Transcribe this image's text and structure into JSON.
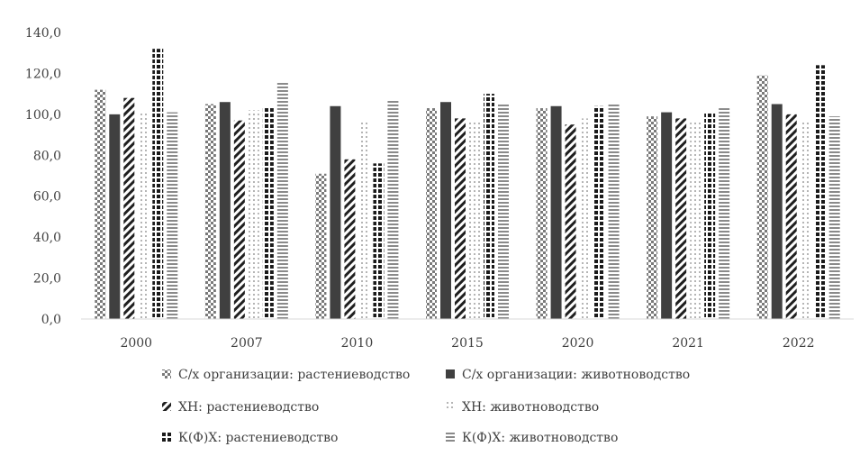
{
  "chart_data": {
    "type": "bar",
    "categories": [
      "2000",
      "2007",
      "2010",
      "2015",
      "2020",
      "2021",
      "2022"
    ],
    "ylim": [
      0,
      140
    ],
    "yticks": [
      "0,0",
      "20,0",
      "40,0",
      "60,0",
      "80,0",
      "100,0",
      "120,0",
      "140,0"
    ],
    "grid": false,
    "legend_position": "bottom",
    "series": [
      {
        "name": "С/х организации: растениеводство",
        "color": "#7f7f7f",
        "pattern": "checker",
        "values": [
          112,
          105,
          71,
          103,
          103,
          99,
          119
        ]
      },
      {
        "name": "С/х организации: животноводство",
        "color": "#404040",
        "pattern": "solid",
        "values": [
          100,
          106,
          104,
          106,
          104,
          101,
          105
        ]
      },
      {
        "name": "ХН: растениеводство",
        "color": "#262626",
        "pattern": "diagonal",
        "values": [
          108,
          97,
          78,
          98,
          95,
          98,
          100
        ]
      },
      {
        "name": "ХН: животноводство",
        "color": "#bfbfbf",
        "pattern": "dots",
        "values": [
          101,
          102,
          96,
          96,
          98,
          96,
          96
        ]
      },
      {
        "name": "К(Ф)Х: растениеводство",
        "color": "#1a1a1a",
        "pattern": "grid",
        "values": [
          132,
          103,
          76,
          110,
          104,
          101,
          124
        ]
      },
      {
        "name": "К(Ф)Х: животноводство",
        "color": "#8c8c8c",
        "pattern": "horizontal",
        "values": [
          101,
          116,
          107,
          105,
          105,
          103,
          99
        ]
      }
    ]
  }
}
